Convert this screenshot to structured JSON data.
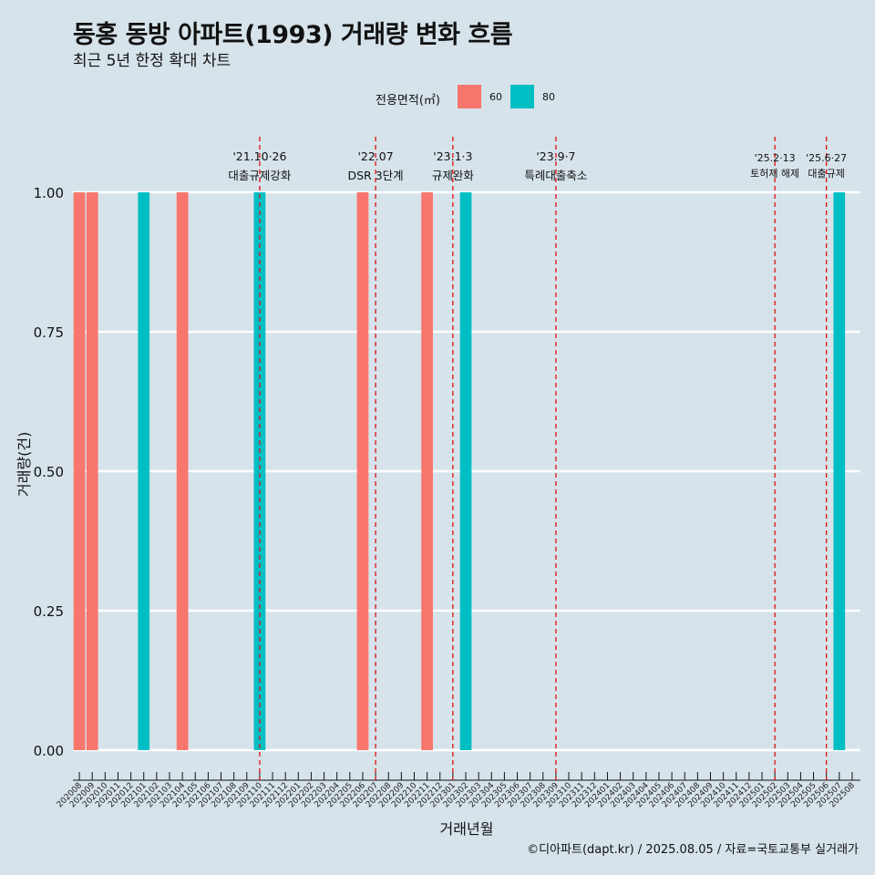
{
  "title": "동홍 동방 아파트(1993) 거래량 변화 흐름",
  "subtitle": "최근 5년 한정 확대 차트",
  "caption": "©디아파트(dapt.kr) / 2025.08.05 / 자료=국토교통부 실거래가",
  "legend": {
    "title": "전용면적(㎡)",
    "items": [
      {
        "label": "60",
        "color": "#f8766d"
      },
      {
        "label": "80",
        "color": "#00bfc4"
      }
    ]
  },
  "chart_data": {
    "type": "bar",
    "xlabel": "거래년월",
    "ylabel": "거래량(건)",
    "ylim": [
      0,
      1
    ],
    "yticks": [
      "0.00",
      "0.25",
      "0.50",
      "0.75",
      "1.00"
    ],
    "grid": true,
    "legend_position": "top",
    "categories": [
      "202008",
      "202009",
      "202010",
      "202011",
      "202012",
      "202101",
      "202102",
      "202103",
      "202104",
      "202105",
      "202106",
      "202107",
      "202108",
      "202109",
      "202110",
      "202111",
      "202112",
      "202201",
      "202202",
      "202203",
      "202204",
      "202205",
      "202206",
      "202207",
      "202208",
      "202209",
      "202210",
      "202211",
      "202212",
      "202301",
      "202302",
      "202303",
      "202304",
      "202305",
      "202306",
      "202307",
      "202308",
      "202309",
      "202310",
      "202311",
      "202312",
      "202401",
      "202402",
      "202403",
      "202404",
      "202405",
      "202406",
      "202407",
      "202408",
      "202409",
      "202410",
      "202411",
      "202412",
      "202501",
      "202502",
      "202503",
      "202504",
      "202505",
      "202506",
      "202507",
      "202508"
    ],
    "series": [
      {
        "name": "60",
        "color": "#f8766d",
        "values": [
          1,
          1,
          0,
          0,
          0,
          0,
          0,
          0,
          1,
          0,
          0,
          0,
          0,
          0,
          0,
          0,
          0,
          0,
          0,
          0,
          0,
          0,
          1,
          0,
          0,
          0,
          0,
          1,
          0,
          0,
          0,
          0,
          0,
          0,
          0,
          0,
          0,
          0,
          0,
          0,
          0,
          0,
          0,
          0,
          0,
          0,
          0,
          0,
          0,
          0,
          0,
          0,
          0,
          0,
          0,
          0,
          0,
          0,
          0,
          0,
          0
        ]
      },
      {
        "name": "80",
        "color": "#00bfc4",
        "values": [
          0,
          0,
          0,
          0,
          0,
          1,
          0,
          0,
          0,
          0,
          0,
          0,
          0,
          0,
          1,
          0,
          0,
          0,
          0,
          0,
          0,
          0,
          0,
          0,
          0,
          0,
          0,
          0,
          0,
          0,
          1,
          0,
          0,
          0,
          0,
          0,
          0,
          0,
          0,
          0,
          0,
          0,
          0,
          0,
          0,
          0,
          0,
          0,
          0,
          0,
          0,
          0,
          0,
          0,
          0,
          0,
          0,
          0,
          0,
          1,
          0
        ]
      }
    ],
    "annotations": [
      {
        "x": "202110",
        "date": "'21.10·26",
        "text": "대출규제강화"
      },
      {
        "x": "202207",
        "date": "'22.07",
        "text": "DSR 3단계"
      },
      {
        "x": "202301",
        "date": "'23.1·3",
        "text": "규제완화"
      },
      {
        "x": "202309",
        "date": "'23.9·7",
        "text": "특례대출축소"
      },
      {
        "x": "202502",
        "date": "'25.2·13",
        "text": "토허제 해제"
      },
      {
        "x": "202506",
        "date": "'25.6·27",
        "text": "대출규제"
      }
    ]
  }
}
